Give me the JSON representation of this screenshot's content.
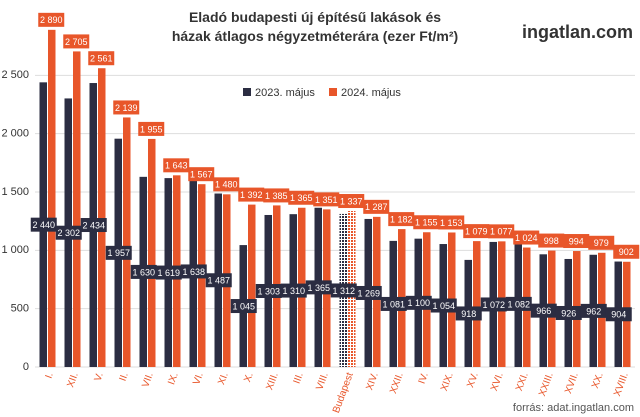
{
  "chart_data": {
    "type": "bar",
    "title": "Eladó budapesti új építésű lakások és házak átlagos négyzetméterára (ezer Ft/m²)",
    "brand": "ingatlan.com",
    "source": "forrás: adat.ingatlan.com",
    "categories": [
      "I.",
      "XII.",
      "V.",
      "II.",
      "VII.",
      "IX.",
      "VI.",
      "XI.",
      "X.",
      "XIII.",
      "III.",
      "VIII.",
      "Budapest",
      "XIV.",
      "XXII.",
      "IV.",
      "XIX.",
      "XV.",
      "XVI.",
      "XXI.",
      "XXIII.",
      "XVII.",
      "XX.",
      "XVIII."
    ],
    "series": [
      {
        "name": "2023. május",
        "color": "#2b2d42",
        "values": [
          2440,
          2302,
          2434,
          1957,
          1630,
          1619,
          1638,
          1487,
          1045,
          1303,
          1310,
          1365,
          1312,
          1269,
          1081,
          1100,
          1054,
          918,
          1072,
          1082,
          966,
          926,
          962,
          904
        ],
        "value_labels": [
          "2 440",
          "2 302",
          "2 434",
          "1 957",
          "1 630",
          "1 619",
          "1 638",
          "1 487",
          "1 045",
          "1 303",
          "1 310",
          "1 365",
          "1 312",
          "1 269",
          "1 081",
          "1 100",
          "1 054",
          "918",
          "1 072",
          "1 082",
          "966",
          "926",
          "962",
          "904"
        ]
      },
      {
        "name": "2024. május",
        "color": "#e8562a",
        "values": [
          2890,
          2705,
          2561,
          2139,
          1955,
          1643,
          1567,
          1480,
          1392,
          1385,
          1365,
          1351,
          1337,
          1287,
          1182,
          1155,
          1153,
          1079,
          1077,
          1024,
          998,
          994,
          979,
          902
        ],
        "value_labels": [
          "2 890",
          "2 705",
          "2 561",
          "2 139",
          "1 955",
          "1 643",
          "1 567",
          "1 480",
          "1 392",
          "1 385",
          "1 365",
          "1 351",
          "1 337",
          "1 287",
          "1 182",
          "1 155",
          "1 153",
          "1 079",
          "1 077",
          "1 024",
          "998",
          "994",
          "979",
          "902"
        ]
      }
    ],
    "ylim": [
      0,
      3000
    ],
    "yticks": [
      0,
      500,
      {
        "value": 1000,
        "label": "1 000"
      },
      {
        "value": 1500,
        "label": "1 500"
      },
      {
        "value": 2000,
        "label": "2 000"
      },
      {
        "value": 2500,
        "label": "2 500"
      }
    ],
    "grid": true
  }
}
